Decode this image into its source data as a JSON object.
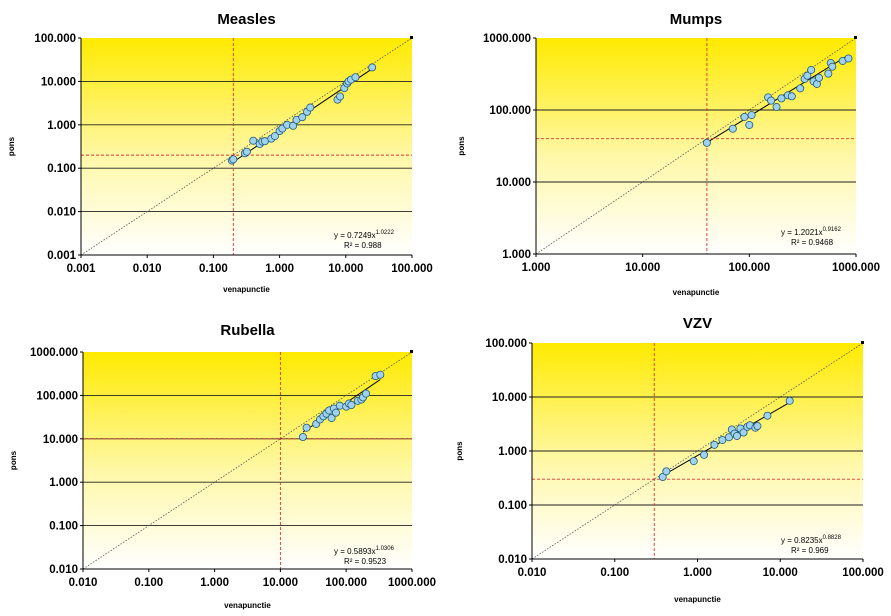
{
  "chart_data": [
    {
      "type": "scatter",
      "title": "Measles",
      "xlabel": "venapunctie",
      "ylabel": "pons",
      "scale": "log",
      "xlim": [
        0.001,
        100
      ],
      "ylim": [
        0.001,
        100
      ],
      "xticks": [
        "0.001",
        "0.010",
        "0.100",
        "1.000",
        "10.000",
        "100.000"
      ],
      "yticks": [
        "0.001",
        "0.010",
        "0.100",
        "1.000",
        "10.000",
        "100.000"
      ],
      "cutoff": {
        "x": 0.2,
        "y": 0.2
      },
      "equation": "y = 0.7249x",
      "exponent": "1.0222",
      "r2": "R² = 0.988",
      "points": [
        [
          0.19,
          0.15
        ],
        [
          0.2,
          0.16
        ],
        [
          0.3,
          0.22
        ],
        [
          0.32,
          0.24
        ],
        [
          0.4,
          0.43
        ],
        [
          0.5,
          0.36
        ],
        [
          0.55,
          0.41
        ],
        [
          0.6,
          0.42
        ],
        [
          0.75,
          0.48
        ],
        [
          0.85,
          0.55
        ],
        [
          1.0,
          0.72
        ],
        [
          1.1,
          0.82
        ],
        [
          1.3,
          1.0
        ],
        [
          1.6,
          0.95
        ],
        [
          1.8,
          1.3
        ],
        [
          2.2,
          1.5
        ],
        [
          2.6,
          2.0
        ],
        [
          2.9,
          2.5
        ],
        [
          7.5,
          3.8
        ],
        [
          8.2,
          4.5
        ],
        [
          9.5,
          7.0
        ],
        [
          10.5,
          9.0
        ],
        [
          11,
          10
        ],
        [
          12,
          11
        ],
        [
          14,
          12.5
        ],
        [
          25,
          21
        ]
      ]
    },
    {
      "type": "scatter",
      "title": "Mumps",
      "xlabel": "venapunctie",
      "ylabel": "pons",
      "scale": "log",
      "xlim": [
        1,
        1000
      ],
      "ylim": [
        1,
        1000
      ],
      "xticks": [
        "1.000",
        "10.000",
        "100.000",
        "1000.000"
      ],
      "yticks": [
        "1.000",
        "10.000",
        "100.000",
        "1000.000"
      ],
      "cutoff": {
        "x": 40,
        "y": 40
      },
      "equation": "y = 1.2021x",
      "exponent": "0.9162",
      "r2": "R² = 0.9468",
      "points": [
        [
          40,
          35
        ],
        [
          70,
          55
        ],
        [
          90,
          80
        ],
        [
          100,
          62
        ],
        [
          105,
          85
        ],
        [
          150,
          150
        ],
        [
          160,
          135
        ],
        [
          180,
          110
        ],
        [
          200,
          145
        ],
        [
          230,
          160
        ],
        [
          250,
          155
        ],
        [
          300,
          200
        ],
        [
          330,
          270
        ],
        [
          350,
          300
        ],
        [
          380,
          360
        ],
        [
          400,
          250
        ],
        [
          430,
          230
        ],
        [
          450,
          280
        ],
        [
          550,
          320
        ],
        [
          580,
          450
        ],
        [
          600,
          400
        ],
        [
          750,
          480
        ],
        [
          850,
          520
        ]
      ]
    },
    {
      "type": "scatter",
      "title": "Rubella",
      "xlabel": "venapunctie",
      "ylabel": "pons",
      "scale": "log",
      "xlim": [
        0.01,
        1000
      ],
      "ylim": [
        0.01,
        1000
      ],
      "xticks": [
        "0.010",
        "0.100",
        "1.000",
        "10.000",
        "100.000",
        "1000.000"
      ],
      "yticks": [
        "0.010",
        "0.100",
        "1.000",
        "10.000",
        "100.000",
        "1000.000"
      ],
      "cutoff": {
        "x": 10,
        "y": 10
      },
      "equation": "y = 0.5893x",
      "exponent": "1.0306",
      "r2": "R² = 0.9523",
      "points": [
        [
          22,
          11
        ],
        [
          25,
          18
        ],
        [
          35,
          22
        ],
        [
          40,
          28
        ],
        [
          45,
          33
        ],
        [
          50,
          38
        ],
        [
          55,
          45
        ],
        [
          60,
          30
        ],
        [
          65,
          50
        ],
        [
          70,
          40
        ],
        [
          80,
          58
        ],
        [
          100,
          55
        ],
        [
          110,
          65
        ],
        [
          120,
          60
        ],
        [
          150,
          75
        ],
        [
          170,
          80
        ],
        [
          180,
          90
        ],
        [
          200,
          110
        ],
        [
          280,
          280
        ],
        [
          330,
          300
        ]
      ]
    },
    {
      "type": "scatter",
      "title": "VZV",
      "xlabel": "venapunctie",
      "ylabel": "pons",
      "scale": "log",
      "xlim": [
        0.01,
        100
      ],
      "ylim": [
        0.01,
        100
      ],
      "xticks": [
        "0.010",
        "0.100",
        "1.000",
        "10.000",
        "100.000"
      ],
      "yticks": [
        "0.010",
        "0.100",
        "1.000",
        "10.000",
        "100.000"
      ],
      "cutoff": {
        "x": 0.3,
        "y": 0.3
      },
      "equation": "y = 0.8235x",
      "exponent": "0.8828",
      "r2": "R² = 0.969",
      "points": [
        [
          0.38,
          0.33
        ],
        [
          0.42,
          0.42
        ],
        [
          0.9,
          0.65
        ],
        [
          1.2,
          0.85
        ],
        [
          1.6,
          1.3
        ],
        [
          2.0,
          1.6
        ],
        [
          2.4,
          1.8
        ],
        [
          2.6,
          2.5
        ],
        [
          2.8,
          2.1
        ],
        [
          3.0,
          1.9
        ],
        [
          3.3,
          2.6
        ],
        [
          3.6,
          2.2
        ],
        [
          4.0,
          2.8
        ],
        [
          4.3,
          3.0
        ],
        [
          5.0,
          2.7
        ],
        [
          5.3,
          2.9
        ],
        [
          7.0,
          4.5
        ],
        [
          13,
          8.5
        ]
      ]
    }
  ]
}
